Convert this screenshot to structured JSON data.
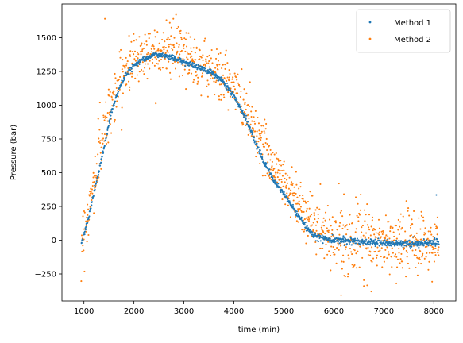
{
  "chart_data": {
    "type": "scatter",
    "title": "",
    "xlabel": "time (min)",
    "ylabel": "Pressure (bar)",
    "xlim": [
      560,
      8440
    ],
    "ylim": [
      -450,
      1750
    ],
    "xticks": [
      1000,
      2000,
      3000,
      4000,
      5000,
      6000,
      7000,
      8000
    ],
    "yticks": [
      -250,
      0,
      250,
      500,
      750,
      1000,
      1250,
      1500
    ],
    "grid": false,
    "legend_position": "top-right",
    "series": [
      {
        "name": "Method 1",
        "color": "#1f77b4",
        "curve": [
          [
            950,
            -30
          ],
          [
            1100,
            180
          ],
          [
            1250,
            430
          ],
          [
            1400,
            680
          ],
          [
            1550,
            950
          ],
          [
            1700,
            1120
          ],
          [
            1850,
            1230
          ],
          [
            2000,
            1300
          ],
          [
            2200,
            1345
          ],
          [
            2400,
            1372
          ],
          [
            2600,
            1370
          ],
          [
            2800,
            1350
          ],
          [
            3000,
            1320
          ],
          [
            3200,
            1295
          ],
          [
            3400,
            1265
          ],
          [
            3600,
            1230
          ],
          [
            3800,
            1170
          ],
          [
            4000,
            1070
          ],
          [
            4200,
            930
          ],
          [
            4400,
            760
          ],
          [
            4600,
            580
          ],
          [
            4800,
            440
          ],
          [
            5000,
            340
          ],
          [
            5200,
            230
          ],
          [
            5400,
            120
          ],
          [
            5600,
            30
          ],
          [
            5800,
            10
          ],
          [
            6000,
            5
          ],
          [
            6500,
            -10
          ],
          [
            7000,
            -20
          ],
          [
            7500,
            -25
          ],
          [
            8000,
            -20
          ],
          [
            8100,
            -15
          ]
        ],
        "noise": 10,
        "points": 1100,
        "outliers": [
          [
            8050,
            335
          ]
        ]
      },
      {
        "name": "Method 2",
        "color": "#ff7f0e",
        "curve": [
          [
            950,
            -10
          ],
          [
            1100,
            230
          ],
          [
            1250,
            520
          ],
          [
            1400,
            800
          ],
          [
            1550,
            1020
          ],
          [
            1700,
            1160
          ],
          [
            1850,
            1270
          ],
          [
            2000,
            1340
          ],
          [
            2200,
            1380
          ],
          [
            2400,
            1410
          ],
          [
            2600,
            1420
          ],
          [
            2800,
            1410
          ],
          [
            3000,
            1385
          ],
          [
            3200,
            1340
          ],
          [
            3400,
            1300
          ],
          [
            3600,
            1260
          ],
          [
            3800,
            1200
          ],
          [
            4000,
            1120
          ],
          [
            4200,
            1000
          ],
          [
            4400,
            850
          ],
          [
            4600,
            700
          ],
          [
            4800,
            560
          ],
          [
            5000,
            440
          ],
          [
            5200,
            340
          ],
          [
            5400,
            230
          ],
          [
            5600,
            120
          ],
          [
            5800,
            40
          ],
          [
            6000,
            20
          ],
          [
            6500,
            0
          ],
          [
            7000,
            -20
          ],
          [
            7500,
            -30
          ],
          [
            8000,
            -20
          ],
          [
            8100,
            -15
          ]
        ],
        "noise": 95,
        "points": 1150,
        "outliers": [
          [
            1420,
            1640
          ],
          [
            1320,
            1020
          ],
          [
            2650,
            1630
          ],
          [
            6750,
            -380
          ],
          [
            6600,
            -340
          ],
          [
            6100,
            420
          ],
          [
            7250,
            -320
          ],
          [
            7450,
            290
          ],
          [
            7750,
            210
          ]
        ]
      }
    ]
  }
}
